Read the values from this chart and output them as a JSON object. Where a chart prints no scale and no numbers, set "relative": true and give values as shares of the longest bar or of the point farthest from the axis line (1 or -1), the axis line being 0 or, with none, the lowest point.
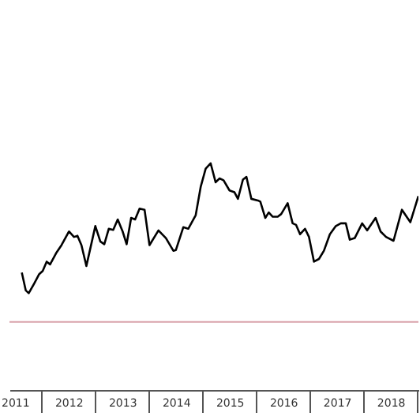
{
  "chart_data": {
    "type": "line",
    "relative": true,
    "grid": false,
    "tick_labels": "x",
    "marker": "none",
    "line_style": "solid",
    "xlim": [
      2011.4,
      2019.02
    ],
    "xticks": [
      {
        "value": 2011.5,
        "label": "2011"
      },
      {
        "value": 2012,
        "label": null
      },
      {
        "value": 2012.5,
        "label": "2012"
      },
      {
        "value": 2013,
        "label": null
      },
      {
        "value": 2013.5,
        "label": "2013"
      },
      {
        "value": 2014,
        "label": null
      },
      {
        "value": 2014.5,
        "label": "2014"
      },
      {
        "value": 2015,
        "label": null
      },
      {
        "value": 2015.5,
        "label": "2015"
      },
      {
        "value": 2016,
        "label": null
      },
      {
        "value": 2016.5,
        "label": "2016"
      },
      {
        "value": 2017,
        "label": null
      },
      {
        "value": 2017.5,
        "label": "2017"
      },
      {
        "value": 2018,
        "label": null
      },
      {
        "value": 2018.5,
        "label": "2018"
      },
      {
        "value": 2019,
        "label": null
      }
    ],
    "series": [
      {
        "color": "#000000",
        "x": [
          2011.63,
          2011.704,
          2011.759,
          2011.861,
          2011.954,
          2012.019,
          2012.093,
          2012.157,
          2012.278,
          2012.37,
          2012.509,
          2012.602,
          2012.667,
          2012.741,
          2012.833,
          2013.0,
          2013.093,
          2013.167,
          2013.25,
          2013.333,
          2013.417,
          2013.509,
          2013.583,
          2013.667,
          2013.741,
          2013.824,
          2013.917,
          2014.009,
          2014.176,
          2014.315,
          2014.454,
          2014.5,
          2014.639,
          2014.731,
          2014.87,
          2014.963,
          2015.056,
          2015.148,
          2015.241,
          2015.315,
          2015.389,
          2015.5,
          2015.593,
          2015.657,
          2015.75,
          2015.815,
          2015.907,
          2016.028,
          2016.074,
          2016.167,
          2016.231,
          2016.306,
          2016.398,
          2016.463,
          2016.583,
          2016.676,
          2016.741,
          2016.815,
          2016.907,
          2016.981,
          2017.074,
          2017.167,
          2017.259,
          2017.37,
          2017.481,
          2017.574,
          2017.667,
          2017.741,
          2017.833,
          2017.972,
          2018.065,
          2018.222,
          2018.315,
          2018.417,
          2018.556,
          2018.713,
          2018.87,
          2019.019
        ],
        "values": [
          0.518,
          0.439,
          0.427,
          0.47,
          0.511,
          0.525,
          0.566,
          0.554,
          0.607,
          0.639,
          0.699,
          0.675,
          0.68,
          0.639,
          0.547,
          0.723,
          0.655,
          0.643,
          0.711,
          0.706,
          0.752,
          0.699,
          0.643,
          0.759,
          0.752,
          0.8,
          0.795,
          0.639,
          0.704,
          0.67,
          0.614,
          0.617,
          0.718,
          0.711,
          0.771,
          0.896,
          0.976,
          1.0,
          0.916,
          0.933,
          0.925,
          0.88,
          0.872,
          0.843,
          0.928,
          0.94,
          0.843,
          0.836,
          0.831,
          0.759,
          0.783,
          0.764,
          0.764,
          0.776,
          0.824,
          0.735,
          0.728,
          0.687,
          0.711,
          0.675,
          0.566,
          0.578,
          0.614,
          0.687,
          0.723,
          0.735,
          0.735,
          0.663,
          0.67,
          0.735,
          0.704,
          0.759,
          0.699,
          0.675,
          0.658,
          0.795,
          0.74,
          0.855
        ]
      }
    ],
    "ref_lines": [
      {
        "axis": "y",
        "value": 0.3,
        "color": "#d9a3ab"
      }
    ]
  }
}
